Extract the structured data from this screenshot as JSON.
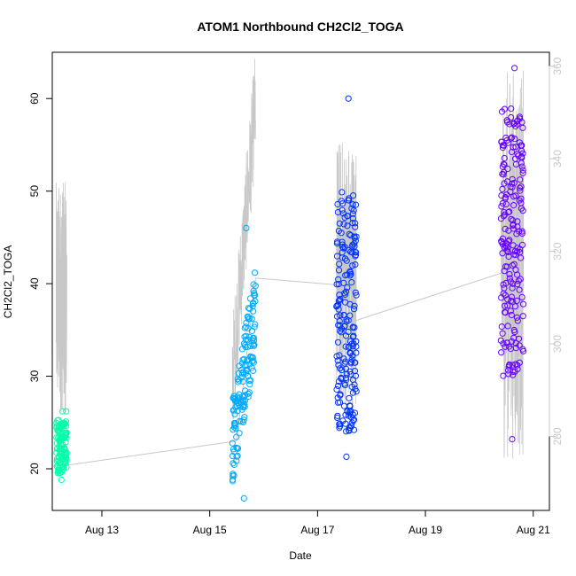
{
  "chart_data": {
    "type": "scatter",
    "title": "ATOM1 Northbound CH2Cl2_TOGA",
    "xlabel": "Date",
    "ylabel": "CH2Cl2_TOGA",
    "x_ticks": [
      "Aug 13",
      "Aug 15",
      "Aug 17",
      "Aug 19",
      "Aug 21"
    ],
    "y_ticks": [
      20,
      30,
      40,
      50,
      60
    ],
    "y2_ticks": [
      280,
      300,
      320,
      340,
      360
    ],
    "ylim": [
      15.5,
      65
    ],
    "y2lim": [
      264,
      363
    ],
    "xlim_days": [
      12.08,
      21.3
    ],
    "grid": false,
    "colors": {
      "altitude_line": "#c8c8c8",
      "flight_connector": "#c8c8c8",
      "series_1": "#00ffaa",
      "series_2": "#00aaff",
      "series_3": "#0033ff",
      "series_4": "#6600ff"
    },
    "series": [
      {
        "x_range": [
          "Aug 12.15",
          "Aug 12.35"
        ],
        "y_mean": 22.0,
        "y_range": [
          18.8,
          26.2
        ]
      },
      {
        "x_range": [
          "Aug 15.42",
          "Aug 15.85"
        ],
        "y_range": [
          16.8,
          46.0
        ]
      },
      {
        "x_range": [
          "Aug 17.35",
          "Aug 17.72"
        ],
        "y_range": [
          21.3,
          60.0
        ]
      },
      {
        "x_range": [
          "Aug 20.40",
          "Aug 20.82"
        ],
        "y_range": [
          23.2,
          63.3
        ]
      }
    ],
    "connector_points": [
      {
        "x": "Aug 12.25",
        "y": 20.3
      },
      {
        "x": "Aug 15.50",
        "y": 23.0
      },
      {
        "x": "Aug 15.85",
        "y": 40.6
      },
      {
        "x": "Aug 17.50",
        "y": 39.8
      },
      {
        "x": "Aug 17.70",
        "y": 36.0
      },
      {
        "x": "Aug 20.60",
        "y": 41.5
      }
    ]
  }
}
